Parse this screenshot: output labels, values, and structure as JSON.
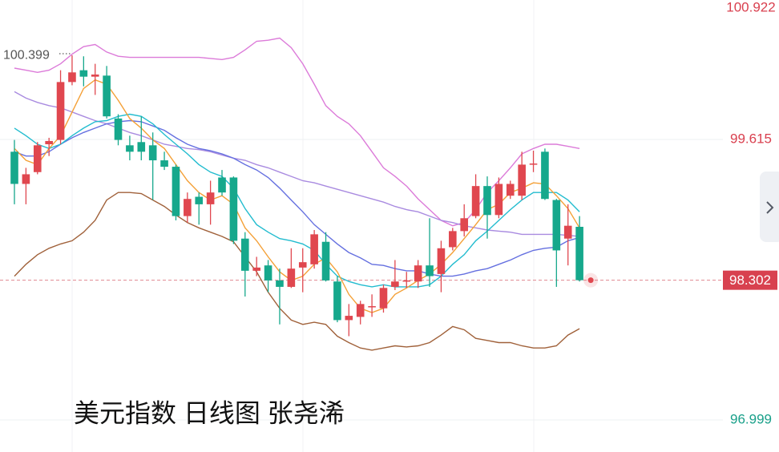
{
  "chart_data": {
    "type": "candlestick",
    "title": "美元指数 日线图 张尧浠",
    "ylim": [
      96.7,
      100.915
    ],
    "yticks": [
      100.922,
      99.615,
      96.999
    ],
    "ytick_colors": [
      "#d9404f",
      "#d9404f",
      "#1aa08a"
    ],
    "up_color": "#e0474f",
    "down_color": "#16a88c",
    "open": [
      99.5,
      99.2,
      99.31,
      99.57,
      99.61,
      100.15,
      100.26,
      100.2,
      100.21,
      99.81,
      99.56,
      99.59,
      99.56,
      99.42,
      99.36,
      98.9,
      99.08,
      99.01,
      99.26,
      99.26,
      98.69,
      98.39,
      98.44,
      98.3,
      98.24,
      98.42,
      98.45,
      98.66,
      98.29,
      97.93,
      97.96,
      98.05,
      98.04,
      98.24,
      98.29,
      98.29,
      98.44,
      98.36,
      98.61,
      98.76,
      98.9,
      99.18,
      98.91,
      99.09,
      99.09,
      99.38,
      99.5,
      99.05,
      98.69,
      98.8
    ],
    "high": [
      99.61,
      99.35,
      99.59,
      99.63,
      100.26,
      100.399,
      100.39,
      100.32,
      100.3,
      99.85,
      99.65,
      99.83,
      99.68,
      99.5,
      99.38,
      99.12,
      99.12,
      99.23,
      99.33,
      99.27,
      98.75,
      98.52,
      98.49,
      98.41,
      98.6,
      98.6,
      98.77,
      98.75,
      98.34,
      98.08,
      98.11,
      98.17,
      98.26,
      98.49,
      98.38,
      98.49,
      98.88,
      98.67,
      98.79,
      99.01,
      99.29,
      99.27,
      99.26,
      99.23,
      99.5,
      99.51,
      99.53,
      99.06,
      99.01,
      98.9
    ],
    "low": [
      99.01,
      99.01,
      99.29,
      99.46,
      99.57,
      100.12,
      100.11,
      100.03,
      99.81,
      99.56,
      99.42,
      99.42,
      99.05,
      99.33,
      98.86,
      98.84,
      98.82,
      98.82,
      99.09,
      98.64,
      98.15,
      98.34,
      98.19,
      97.89,
      98.23,
      98.19,
      98.41,
      98.29,
      97.91,
      97.78,
      97.89,
      97.96,
      98.0,
      98.21,
      98.23,
      98.23,
      98.24,
      98.19,
      98.58,
      98.71,
      98.88,
      98.69,
      98.88,
      99.06,
      99.05,
      99.31,
      99.05,
      98.24,
      98.44,
      98.29
    ],
    "close": [
      99.2,
      99.29,
      99.56,
      99.6,
      100.15,
      100.24,
      100.2,
      100.22,
      99.83,
      99.61,
      99.5,
      99.5,
      99.42,
      99.36,
      98.9,
      99.06,
      99.01,
      99.12,
      99.12,
      98.67,
      98.39,
      98.42,
      98.3,
      98.24,
      98.41,
      98.47,
      98.73,
      98.3,
      97.93,
      97.97,
      98.08,
      98.06,
      98.23,
      98.29,
      98.3,
      98.44,
      98.34,
      98.6,
      98.76,
      98.88,
      99.18,
      98.91,
      99.2,
      99.2,
      99.38,
      99.39,
      99.06,
      98.58,
      98.81,
      98.302
    ],
    "lines": [
      {
        "color": "#dc7bd9",
        "values": [
          100.28,
          100.26,
          100.24,
          100.26,
          100.32,
          100.41,
          100.48,
          100.5,
          100.43,
          100.39,
          100.38,
          100.38,
          100.38,
          100.38,
          100.38,
          100.38,
          100.38,
          100.37,
          100.36,
          100.38,
          100.45,
          100.53,
          100.54,
          100.56,
          100.47,
          100.32,
          100.13,
          99.93,
          99.83,
          99.76,
          99.65,
          99.5,
          99.35,
          99.27,
          99.18,
          99.06,
          98.96,
          98.86,
          98.81,
          98.84,
          98.96,
          99.12,
          99.23,
          99.35,
          99.48,
          99.53,
          99.57,
          99.57,
          99.55,
          99.53
        ]
      },
      {
        "color": "#a0613a",
        "values": [
          98.34,
          98.45,
          98.54,
          98.6,
          98.64,
          98.67,
          98.75,
          98.86,
          99.05,
          99.12,
          99.12,
          99.11,
          99.05,
          98.99,
          98.91,
          98.84,
          98.79,
          98.75,
          98.71,
          98.66,
          98.52,
          98.38,
          98.19,
          98.04,
          97.93,
          97.89,
          97.91,
          97.89,
          97.78,
          97.72,
          97.67,
          97.65,
          97.67,
          97.69,
          97.68,
          97.69,
          97.72,
          97.79,
          97.87,
          97.84,
          97.76,
          97.74,
          97.72,
          97.72,
          97.69,
          97.67,
          97.67,
          97.69,
          97.79,
          97.85
        ]
      },
      {
        "color": "#a98be0",
        "values": [
          100.06,
          100.0,
          99.96,
          99.93,
          99.91,
          99.87,
          99.83,
          99.79,
          99.76,
          99.72,
          99.68,
          99.65,
          99.61,
          99.57,
          99.55,
          99.53,
          99.52,
          99.5,
          99.47,
          99.44,
          99.42,
          99.38,
          99.35,
          99.31,
          99.27,
          99.23,
          99.21,
          99.18,
          99.15,
          99.12,
          99.09,
          99.06,
          99.03,
          98.99,
          98.96,
          98.94,
          98.9,
          98.86,
          98.84,
          98.81,
          98.79,
          98.77,
          98.76,
          98.75,
          98.73,
          98.73,
          98.73,
          98.73,
          98.72,
          98.71
        ]
      },
      {
        "color": "#6570e0",
        "values": [
          99.5,
          99.46,
          99.46,
          99.5,
          99.57,
          99.63,
          99.68,
          99.72,
          99.76,
          99.78,
          99.79,
          99.78,
          99.74,
          99.7,
          99.63,
          99.57,
          99.53,
          99.51,
          99.48,
          99.44,
          99.38,
          99.33,
          99.26,
          99.16,
          99.05,
          98.94,
          98.82,
          98.73,
          98.64,
          98.56,
          98.51,
          98.45,
          98.44,
          98.41,
          98.39,
          98.39,
          98.36,
          98.34,
          98.34,
          98.36,
          98.39,
          98.41,
          98.45,
          98.49,
          98.54,
          98.58,
          98.6,
          98.61,
          98.67,
          98.7
        ]
      },
      {
        "color": "#22bccf",
        "values": [
          99.72,
          99.65,
          99.57,
          99.53,
          99.57,
          99.65,
          99.72,
          99.78,
          99.79,
          99.83,
          99.85,
          99.83,
          99.76,
          99.66,
          99.57,
          99.48,
          99.38,
          99.31,
          99.27,
          99.16,
          98.97,
          98.82,
          98.75,
          98.69,
          98.67,
          98.64,
          98.58,
          98.45,
          98.34,
          98.29,
          98.26,
          98.24,
          98.26,
          98.24,
          98.24,
          98.24,
          98.26,
          98.34,
          98.45,
          98.54,
          98.67,
          98.76,
          98.86,
          98.96,
          99.05,
          99.12,
          99.12,
          99.12,
          99.05,
          98.94
        ]
      },
      {
        "color": "#f4a037",
        "values": [
          99.53,
          99.42,
          99.38,
          99.53,
          99.65,
          99.87,
          100.09,
          100.17,
          100.13,
          99.98,
          99.81,
          99.72,
          99.61,
          99.53,
          99.38,
          99.23,
          99.12,
          99.05,
          99.09,
          99.01,
          98.79,
          98.67,
          98.52,
          98.38,
          98.3,
          98.34,
          98.45,
          98.51,
          98.38,
          98.17,
          98.04,
          98.0,
          98.04,
          98.17,
          98.23,
          98.3,
          98.36,
          98.45,
          98.56,
          98.69,
          98.82,
          98.96,
          99.01,
          99.12,
          99.16,
          99.21,
          99.2,
          99.09,
          98.97,
          98.79
        ]
      }
    ]
  }
}
